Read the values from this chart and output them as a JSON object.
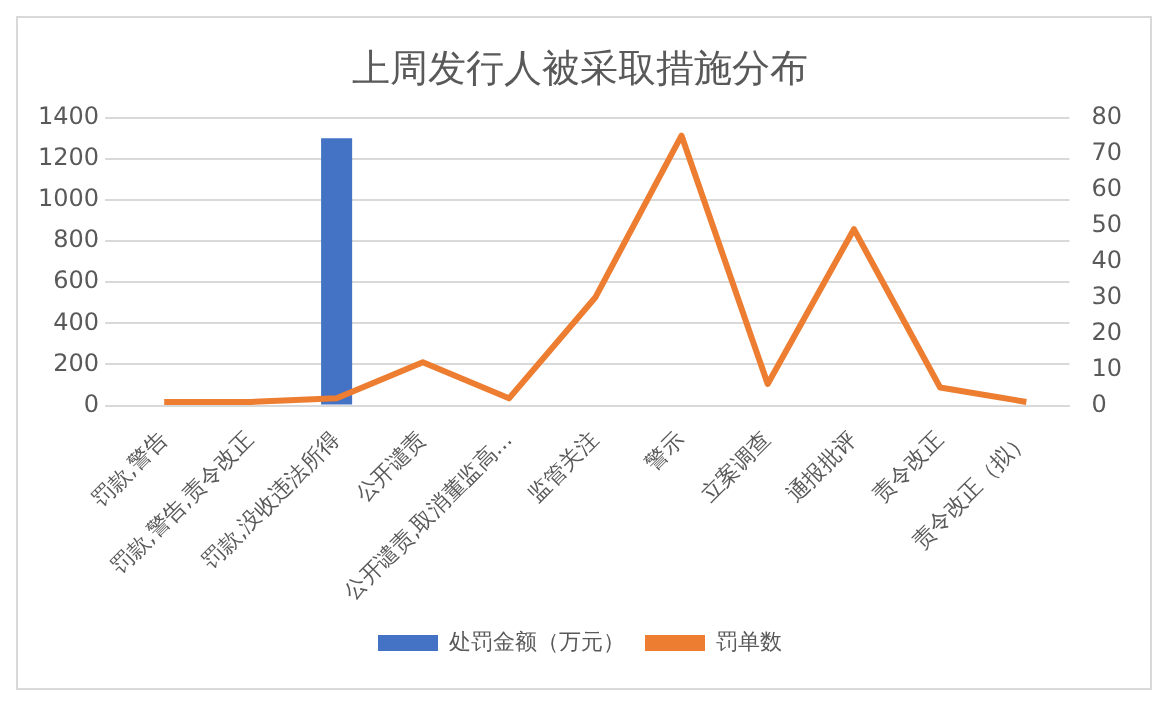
{
  "chart_data": {
    "type": "bar",
    "title": "上周发行人被采取措施分布",
    "categories": [
      "罚款,警告",
      "罚款,警告,责令改正",
      "罚款,没收违法所得",
      "公开谴责",
      "公开谴责,取消董监高...",
      "监管关注",
      "警示",
      "立案调查",
      "通报批评",
      "责令改正",
      "责令改正（拟）"
    ],
    "series": [
      {
        "name": "处罚金额（万元）",
        "color": "#4472c4",
        "values": [
          null,
          null,
          1300,
          null,
          null,
          null,
          null,
          null,
          null,
          null,
          null
        ]
      },
      {
        "name": "罚单数",
        "type": "line",
        "axis": "y2",
        "color": "#ed7d31",
        "values": [
          1,
          1,
          2,
          12,
          2,
          30,
          75,
          6,
          49,
          5,
          1
        ]
      }
    ],
    "ylim": [
      0,
      1400
    ],
    "yticks": [
      0,
      200,
      400,
      600,
      800,
      1000,
      1200,
      1400
    ],
    "y2lim": [
      0,
      80
    ],
    "y2ticks": [
      0,
      10,
      20,
      30,
      40,
      50,
      60,
      70,
      80
    ],
    "grid": "y",
    "legend": "bottom",
    "marker": "none"
  }
}
